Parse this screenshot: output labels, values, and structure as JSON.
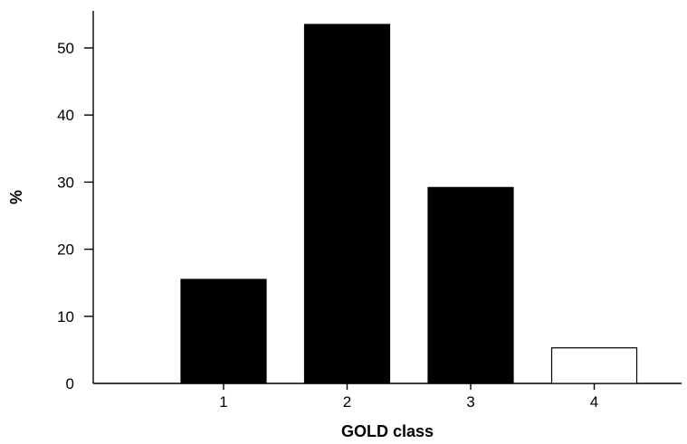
{
  "chart_data": {
    "type": "bar",
    "categories": [
      "1",
      "2",
      "3",
      "4"
    ],
    "values": [
      15.5,
      53.5,
      29.2,
      5.3
    ],
    "bar_colors": [
      "#000000",
      "#000000",
      "#000000",
      "#ffffff"
    ],
    "xlabel": "GOLD class",
    "ylabel": "%",
    "yticks": [
      0,
      10,
      20,
      30,
      40,
      50
    ],
    "ylim": [
      0,
      58
    ],
    "grid": false,
    "legend": "none"
  }
}
